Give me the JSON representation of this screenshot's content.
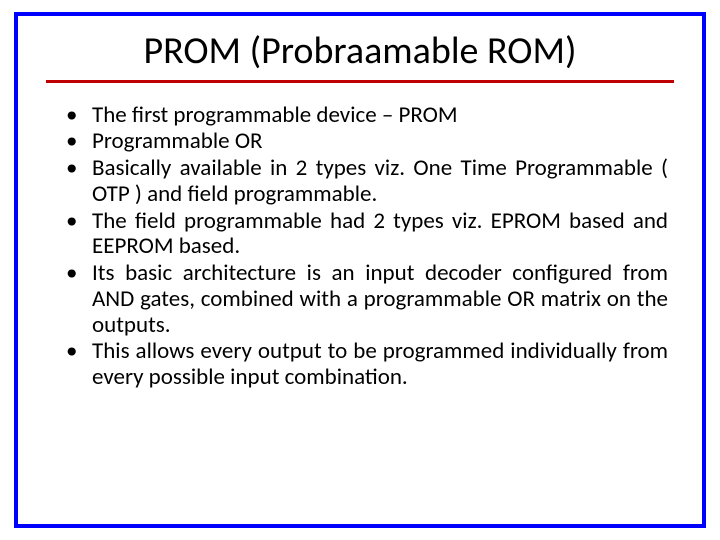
{
  "slide": {
    "title": "PROM (Probraamable ROM)",
    "title_fontsize": 38,
    "title_color": "#000000",
    "underline_color": "#c00000",
    "border_color": "#0000ff",
    "border_width": 4,
    "background_color": "#ffffff",
    "bullet_fontsize": 23,
    "bullet_color": "#000000",
    "bullets": [
      {
        "text_html": "The first programmable device – PROM",
        "justify": false
      },
      {
        "text_html": "Programmable OR",
        "justify": false
      },
      {
        "text_html": "Basically available in 2 types viz. One Time Programmable ( OTP ) and field programmable.",
        "justify": true,
        "segments": [
          {
            "t": "Basically available in 2 types viz. "
          },
          {
            "t": "O",
            "cls": "emph"
          },
          {
            "t": "ne "
          },
          {
            "t": "T",
            "cls": "emph"
          },
          {
            "t": "ime "
          },
          {
            "t": "P",
            "cls": "emph"
          },
          {
            "t": "rogrammable ( "
          },
          {
            "t": "OTP",
            "cls": "emph"
          },
          {
            "t": " ) and field programmable."
          }
        ]
      },
      {
        "text_html": "The field programmable had 2 types viz. EPROM based and EEPROM based.",
        "justify": true
      },
      {
        "text_html": "Its basic architecture is an input decoder configured from AND gates, combined with a programmable OR matrix on the outputs.",
        "justify": true
      },
      {
        "text_html": "This allows every output to be programmed individually from every possible input combination.",
        "justify": true
      }
    ]
  }
}
